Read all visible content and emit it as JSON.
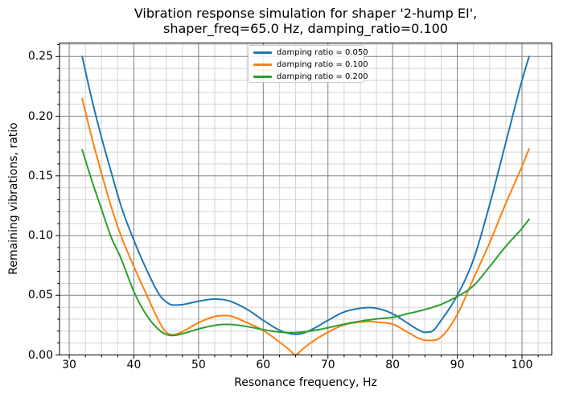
{
  "figure": {
    "title_line1": "Vibration response simulation for shaper '2-hump EI',",
    "title_line2": "shaper_freq=65.0 Hz, damping_ratio=0.100",
    "xlabel": "Resonance frequency, Hz",
    "ylabel": "Remaining vibrations, ratio"
  },
  "colors": {
    "background": "#ffffff",
    "grid_major": "#808080",
    "grid_minor": "#d3d3d3",
    "spine": "#000000",
    "text": "#000000",
    "legend_border": "#cccccc"
  },
  "chart_data": {
    "type": "line",
    "title": "Vibration response simulation for shaper '2-hump EI', shaper_freq=65.0 Hz, damping_ratio=0.100",
    "xlabel": "Resonance frequency, Hz",
    "ylabel": "Remaining vibrations, ratio",
    "xlim": [
      28.5,
      104.6
    ],
    "ylim": [
      0,
      0.2613
    ],
    "grid": true,
    "grid_minor": true,
    "legend_position": "upper center",
    "x_major_ticks": [
      30,
      40,
      50,
      60,
      70,
      80,
      90,
      100
    ],
    "x_tick_labels": [
      "30",
      "40",
      "50",
      "60",
      "70",
      "80",
      "90",
      "100"
    ],
    "x_minor_step": 2.5,
    "y_major_ticks": [
      0.0,
      0.05,
      0.1,
      0.15,
      0.2,
      0.25
    ],
    "y_tick_labels": [
      "0.00",
      "0.05",
      "0.10",
      "0.15",
      "0.20",
      "0.25"
    ],
    "y_minor_step": 0.01,
    "x": [
      32,
      33.5,
      35,
      36.5,
      38,
      40,
      42,
      44,
      45,
      46,
      47.5,
      50,
      52.5,
      54,
      55,
      57.5,
      60,
      62.5,
      64,
      65,
      66,
      67.5,
      70,
      72.5,
      75,
      76.5,
      78,
      80,
      82.5,
      84,
      85,
      86,
      87.5,
      90,
      92.5,
      95,
      97.5,
      100,
      101.1
    ],
    "series": [
      {
        "name": "damping ratio = 0.050",
        "color": "#1f77b4",
        "values": [
          0.25,
          0.214,
          0.182,
          0.153,
          0.125,
          0.096,
          0.071,
          0.05,
          0.0445,
          0.0418,
          0.0422,
          0.045,
          0.0468,
          0.0462,
          0.0448,
          0.0382,
          0.029,
          0.0208,
          0.018,
          0.0173,
          0.018,
          0.0213,
          0.029,
          0.036,
          0.0391,
          0.0397,
          0.0385,
          0.0345,
          0.026,
          0.021,
          0.019,
          0.0196,
          0.029,
          0.05,
          0.08,
          0.126,
          0.178,
          0.23,
          0.25
        ]
      },
      {
        "name": "damping ratio = 0.100",
        "color": "#ff7f0e",
        "values": [
          0.2147,
          0.182,
          0.152,
          0.124,
          0.1,
          0.074,
          0.05,
          0.027,
          0.019,
          0.017,
          0.0196,
          0.027,
          0.0322,
          0.033,
          0.0325,
          0.027,
          0.0205,
          0.0108,
          0.0045,
          0.0001,
          0.0045,
          0.0108,
          0.019,
          0.0252,
          0.0276,
          0.028,
          0.0273,
          0.0258,
          0.0185,
          0.014,
          0.0124,
          0.0122,
          0.015,
          0.034,
          0.064,
          0.094,
          0.127,
          0.158,
          0.1727
        ]
      },
      {
        "name": "damping ratio = 0.200",
        "color": "#2ca02c",
        "values": [
          0.1719,
          0.146,
          0.122,
          0.0985,
          0.081,
          0.053,
          0.033,
          0.0205,
          0.0172,
          0.0163,
          0.0178,
          0.0218,
          0.0248,
          0.0256,
          0.0255,
          0.0238,
          0.0212,
          0.0192,
          0.0187,
          0.0188,
          0.0192,
          0.0202,
          0.0228,
          0.0258,
          0.0283,
          0.0295,
          0.0305,
          0.0315,
          0.0348,
          0.0366,
          0.0381,
          0.0396,
          0.0424,
          0.049,
          0.058,
          0.074,
          0.091,
          0.106,
          0.1137
        ]
      }
    ]
  }
}
